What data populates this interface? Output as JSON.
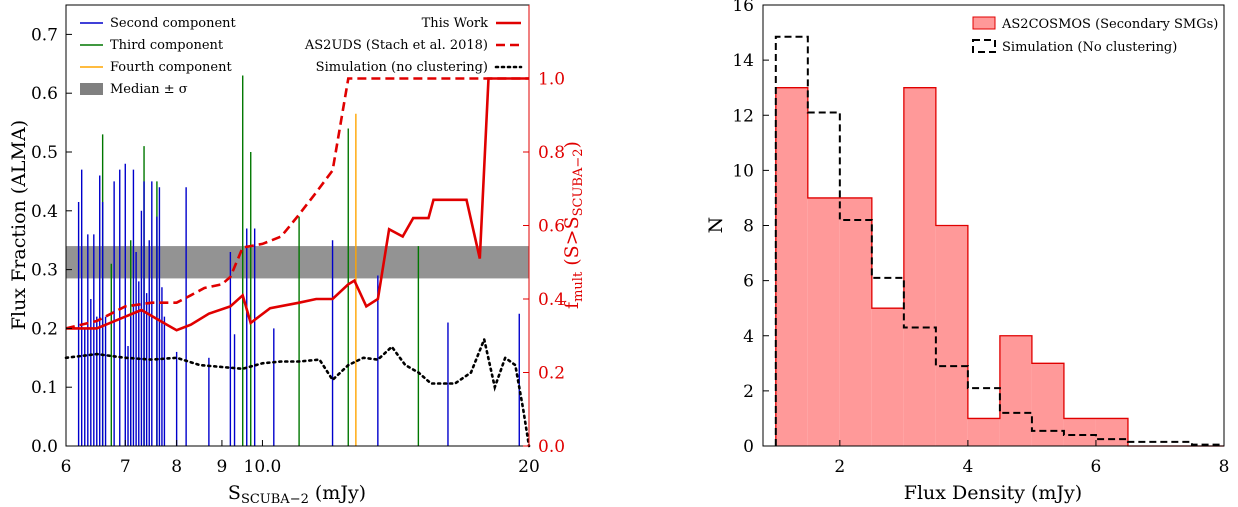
{
  "chart_data": [
    {
      "type": "bar+line",
      "xlabel": "S",
      "xlabel_sub": "SCUBA−2",
      "xlabel_unit": " (mJy)",
      "ylabel_left": "Flux Fraction (ALMA)",
      "ylabel_right_main": "f",
      "ylabel_right_sub1": "mult",
      "ylabel_right_mid": " (S>S",
      "ylabel_right_sub2": "SCUBA−2",
      "ylabel_right_end": ")",
      "xscale": "log",
      "xlim": [
        6,
        20
      ],
      "ylim_left": [
        0,
        0.75
      ],
      "ylim_right": [
        0,
        1.2
      ],
      "xticks": [
        {
          "v": 6,
          "label": "6"
        },
        {
          "v": 7,
          "label": "7"
        },
        {
          "v": 8,
          "label": "8"
        },
        {
          "v": 9,
          "label": "9"
        },
        {
          "v": 10,
          "label": "10.0"
        },
        {
          "v": 20,
          "label": "20"
        }
      ],
      "yticks_left": [
        "0.0",
        "0.1",
        "0.2",
        "0.3",
        "0.4",
        "0.5",
        "0.6",
        "0.7"
      ],
      "yticks_right": [
        "0.0",
        "0.2",
        "0.4",
        "0.6",
        "0.8",
        "1.0"
      ],
      "median_band": {
        "low": 0.285,
        "high": 0.34
      },
      "colors": {
        "second": "#0000cc",
        "third": "#007700",
        "fourth": "#ffa500",
        "band": "#808080",
        "red": "#e00000",
        "black": "#000000"
      },
      "legend_left": [
        {
          "label": "Second component",
          "kind": "line",
          "color": "#0000cc"
        },
        {
          "label": "Third component",
          "kind": "line",
          "color": "#007700"
        },
        {
          "label": "Fourth component",
          "kind": "line",
          "color": "#ffa500"
        },
        {
          "label": "Median ± σ",
          "kind": "patch",
          "color": "#808080"
        }
      ],
      "legend_right": [
        {
          "label": "This Work",
          "style": "solid",
          "color": "#e00000"
        },
        {
          "label": "AS2UDS (Stach et al. 2018)",
          "style": "dashed",
          "color": "#e00000"
        },
        {
          "label": "Simulation (no clustering)",
          "style": "dotted",
          "color": "#000000"
        }
      ],
      "second_component": [
        [
          6.2,
          0.415
        ],
        [
          6.25,
          0.47
        ],
        [
          6.3,
          0.2
        ],
        [
          6.35,
          0.36
        ],
        [
          6.4,
          0.25
        ],
        [
          6.45,
          0.36
        ],
        [
          6.5,
          0.22
        ],
        [
          6.55,
          0.46
        ],
        [
          6.6,
          0.415
        ],
        [
          6.65,
          0.22
        ],
        [
          6.8,
          0.45
        ],
        [
          6.9,
          0.47
        ],
        [
          7.0,
          0.48
        ],
        [
          7.05,
          0.17
        ],
        [
          7.1,
          0.22
        ],
        [
          7.15,
          0.47
        ],
        [
          7.2,
          0.33
        ],
        [
          7.25,
          0.28
        ],
        [
          7.3,
          0.4
        ],
        [
          7.35,
          0.45
        ],
        [
          7.4,
          0.26
        ],
        [
          7.45,
          0.35
        ],
        [
          7.5,
          0.45
        ],
        [
          7.6,
          0.39
        ],
        [
          7.65,
          0.44
        ],
        [
          7.7,
          0.27
        ],
        [
          7.75,
          0.22
        ],
        [
          8.0,
          0.16
        ],
        [
          8.2,
          0.44
        ],
        [
          8.7,
          0.15
        ],
        [
          9.2,
          0.33
        ],
        [
          9.3,
          0.19
        ],
        [
          9.6,
          0.37
        ],
        [
          9.8,
          0.37
        ],
        [
          10.3,
          0.2
        ],
        [
          12.0,
          0.35
        ],
        [
          13.5,
          0.29
        ],
        [
          16.2,
          0.21
        ],
        [
          19.5,
          0.225
        ]
      ],
      "third_component": [
        [
          6.6,
          0.53
        ],
        [
          6.75,
          0.31
        ],
        [
          7.1,
          0.35
        ],
        [
          7.35,
          0.51
        ],
        [
          7.6,
          0.45
        ],
        [
          9.5,
          0.63
        ],
        [
          9.7,
          0.5
        ],
        [
          11.0,
          0.39
        ],
        [
          12.5,
          0.54
        ],
        [
          15.0,
          0.34
        ]
      ],
      "fourth_component": [
        [
          12.75,
          0.565
        ]
      ],
      "this_work": [
        [
          6.0,
          0.32
        ],
        [
          6.5,
          0.32
        ],
        [
          7.3,
          0.37
        ],
        [
          7.8,
          0.33
        ],
        [
          8.0,
          0.315
        ],
        [
          8.3,
          0.33
        ],
        [
          8.7,
          0.36
        ],
        [
          9.2,
          0.38
        ],
        [
          9.5,
          0.41
        ],
        [
          9.7,
          0.335
        ],
        [
          10.2,
          0.375
        ],
        [
          11.0,
          0.39
        ],
        [
          11.5,
          0.4
        ],
        [
          12.0,
          0.4
        ],
        [
          12.5,
          0.44
        ],
        [
          12.7,
          0.45
        ],
        [
          13.1,
          0.38
        ],
        [
          13.5,
          0.4
        ],
        [
          13.9,
          0.59
        ],
        [
          14.4,
          0.57
        ],
        [
          14.8,
          0.62
        ],
        [
          15.4,
          0.62
        ],
        [
          15.6,
          0.67
        ],
        [
          17.0,
          0.67
        ],
        [
          17.6,
          0.51
        ],
        [
          18.0,
          1.0
        ],
        [
          20.0,
          1.0
        ]
      ],
      "as2uds": [
        [
          6.0,
          0.32
        ],
        [
          6.5,
          0.34
        ],
        [
          7.0,
          0.38
        ],
        [
          7.5,
          0.39
        ],
        [
          8.0,
          0.39
        ],
        [
          8.3,
          0.41
        ],
        [
          8.6,
          0.43
        ],
        [
          9.0,
          0.44
        ],
        [
          9.2,
          0.46
        ],
        [
          9.5,
          0.54
        ],
        [
          10.0,
          0.55
        ],
        [
          10.5,
          0.57
        ],
        [
          11.0,
          0.63
        ],
        [
          11.5,
          0.69
        ],
        [
          12.0,
          0.75
        ],
        [
          12.5,
          1.0
        ],
        [
          20.0,
          1.0
        ]
      ],
      "simulation": [
        [
          6.0,
          0.24
        ],
        [
          6.5,
          0.25
        ],
        [
          7.0,
          0.24
        ],
        [
          7.5,
          0.235
        ],
        [
          8.0,
          0.24
        ],
        [
          8.5,
          0.22
        ],
        [
          9.0,
          0.215
        ],
        [
          9.5,
          0.21
        ],
        [
          10.0,
          0.225
        ],
        [
          10.5,
          0.23
        ],
        [
          11.0,
          0.23
        ],
        [
          11.6,
          0.235
        ],
        [
          12.0,
          0.18
        ],
        [
          12.5,
          0.22
        ],
        [
          13.0,
          0.24
        ],
        [
          13.5,
          0.235
        ],
        [
          14.0,
          0.27
        ],
        [
          14.5,
          0.22
        ],
        [
          15.0,
          0.2
        ],
        [
          15.5,
          0.17
        ],
        [
          16.5,
          0.17
        ],
        [
          17.2,
          0.2
        ],
        [
          17.8,
          0.29
        ],
        [
          18.3,
          0.16
        ],
        [
          18.8,
          0.24
        ],
        [
          19.3,
          0.22
        ],
        [
          19.7,
          0.1
        ],
        [
          20.0,
          0.0
        ]
      ]
    },
    {
      "type": "histogram",
      "xlabel": "Flux Density (mJy)",
      "ylabel": "N",
      "xlim": [
        0.8,
        8
      ],
      "ylim": [
        0,
        16
      ],
      "xticks": [
        "2",
        "4",
        "6",
        "8"
      ],
      "yticks": [
        "0",
        "2",
        "4",
        "6",
        "8",
        "10",
        "12",
        "14",
        "16"
      ],
      "bin_edges": [
        1.0,
        1.5,
        2.0,
        2.5,
        3.0,
        3.5,
        4.0,
        4.5,
        5.0,
        5.5,
        6.0,
        6.5,
        7.0,
        7.5,
        8.0
      ],
      "series": [
        {
          "name": "AS2COSMOS (Secondary SMGs)",
          "style": "filled",
          "color": "#ff9999",
          "edge": "#e00000",
          "values": [
            13,
            9,
            9,
            5,
            13,
            8,
            1,
            4,
            3,
            1,
            1,
            0,
            0,
            0
          ]
        },
        {
          "name": "Simulation (No clustering)",
          "style": "dashed",
          "color": "#000000",
          "values": [
            14.85,
            12.1,
            8.2,
            6.1,
            4.3,
            2.9,
            2.1,
            1.2,
            0.55,
            0.4,
            0.25,
            0.15,
            0.15,
            0.05
          ]
        }
      ]
    }
  ]
}
